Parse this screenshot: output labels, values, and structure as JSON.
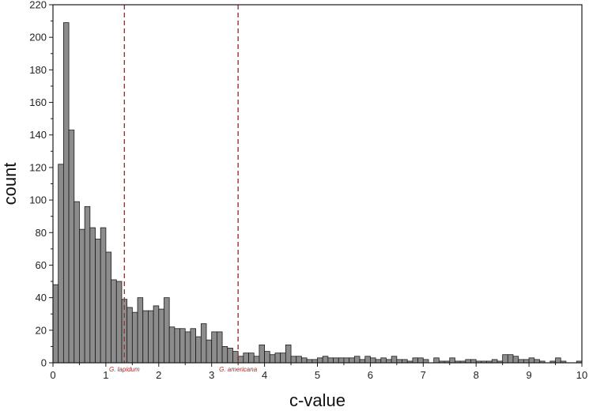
{
  "chart_data": {
    "type": "bar",
    "title": "",
    "xlabel": "c-value",
    "ylabel": "count",
    "xlim": [
      0,
      10
    ],
    "ylim": [
      0,
      220
    ],
    "bin_width": 0.1,
    "xticks": [
      "0",
      "1",
      "2",
      "3",
      "4",
      "5",
      "6",
      "7",
      "8",
      "9",
      "10"
    ],
    "yticks": [
      "0",
      "20",
      "40",
      "60",
      "80",
      "100",
      "120",
      "140",
      "160",
      "180",
      "200",
      "220"
    ],
    "bar_color": "#8c8c8c",
    "bar_edge_color": "#1a1a1a",
    "bins_start": [
      0.0,
      0.1,
      0.2,
      0.3,
      0.4,
      0.5,
      0.6,
      0.7,
      0.8,
      0.9,
      1.0,
      1.1,
      1.2,
      1.3,
      1.4,
      1.5,
      1.6,
      1.7,
      1.8,
      1.9,
      2.0,
      2.1,
      2.2,
      2.3,
      2.4,
      2.5,
      2.6,
      2.7,
      2.8,
      2.9,
      3.0,
      3.1,
      3.2,
      3.3,
      3.4,
      3.5,
      3.6,
      3.7,
      3.8,
      3.9,
      4.0,
      4.1,
      4.2,
      4.3,
      4.4,
      4.5,
      4.6,
      4.7,
      4.8,
      4.9,
      5.0,
      5.1,
      5.2,
      5.3,
      5.4,
      5.5,
      5.6,
      5.7,
      5.8,
      5.9,
      6.0,
      6.1,
      6.2,
      6.3,
      6.4,
      6.5,
      6.6,
      6.7,
      6.8,
      6.9,
      7.0,
      7.1,
      7.2,
      7.3,
      7.4,
      7.5,
      7.6,
      7.7,
      7.8,
      7.9,
      8.0,
      8.1,
      8.2,
      8.3,
      8.4,
      8.5,
      8.6,
      8.7,
      8.8,
      8.9,
      9.0,
      9.1,
      9.2,
      9.3,
      9.4,
      9.5,
      9.6,
      9.7,
      9.8,
      9.9
    ],
    "values": [
      48,
      122,
      209,
      143,
      99,
      82,
      96,
      83,
      76,
      83,
      68,
      51,
      50,
      39,
      34,
      31,
      40,
      32,
      32,
      35,
      33,
      40,
      22,
      21,
      21,
      19,
      21,
      16,
      24,
      14,
      19,
      19,
      10,
      9,
      7,
      4,
      6,
      6,
      4,
      11,
      7,
      5,
      6,
      6,
      11,
      4,
      4,
      3,
      2,
      2,
      3,
      4,
      3,
      3,
      3,
      3,
      3,
      4,
      2,
      4,
      3,
      2,
      3,
      2,
      4,
      2,
      2,
      1,
      3,
      3,
      2,
      0,
      3,
      1,
      1,
      3,
      1,
      1,
      2,
      2,
      1,
      1,
      1,
      2,
      1,
      5,
      5,
      4,
      2,
      2,
      3,
      2,
      1,
      0,
      1,
      3,
      1,
      0,
      0,
      1
    ],
    "reference_lines": [
      {
        "label": "G. lapidum",
        "x": 1.35,
        "color": "#b22a2a"
      },
      {
        "label": "G. americana",
        "x": 3.5,
        "color": "#b22a2a"
      }
    ],
    "grid": false,
    "legend": "none"
  }
}
